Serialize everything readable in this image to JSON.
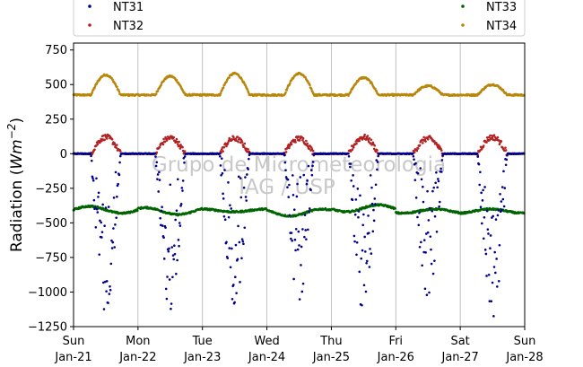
{
  "chart_data": {
    "type": "scatter",
    "title": "",
    "ylabel": "Radiation (Wm⁻²)",
    "ylabel_parts": {
      "prefix": "Radiation (",
      "unit_main": "Wm",
      "unit_exp": "−2",
      "suffix": ")"
    },
    "xlabel": "",
    "ylim": [
      -1250,
      800
    ],
    "xlim_days": [
      0,
      7
    ],
    "y_ticks": [
      -1250,
      -1000,
      -750,
      -500,
      -250,
      0,
      250,
      500,
      750
    ],
    "y_tick_labels": [
      "−1250",
      "−1000",
      "−750",
      "−500",
      "−250",
      "0",
      "250",
      "500",
      "750"
    ],
    "x_ticks": [
      {
        "day": "Sun",
        "date": "Jan-21"
      },
      {
        "day": "Mon",
        "date": "Jan-22"
      },
      {
        "day": "Tue",
        "date": "Jan-23"
      },
      {
        "day": "Wed",
        "date": "Jan-24"
      },
      {
        "day": "Thu",
        "date": "Jan-25"
      },
      {
        "day": "Fri",
        "date": "Jan-26"
      },
      {
        "day": "Sat",
        "date": "Jan-27"
      },
      {
        "day": "Sun",
        "date": "Jan-28"
      }
    ],
    "grid": "vertical",
    "legend_position": "top",
    "watermark": [
      "Grupo de Micrometeorologia",
      "IAG / USP"
    ],
    "series": [
      {
        "name": "NT31",
        "color": "#00008b",
        "baseline": 0,
        "daily_min": [
          -1180,
          -1150,
          -1110,
          -1080,
          -1160,
          -1080,
          -1220
        ],
        "pattern": "night ~0, strong negative daytime scatter"
      },
      {
        "name": "NT32",
        "color": "#b22222",
        "baseline": 0,
        "daily_max": [
          120,
          115,
          110,
          110,
          120,
          110,
          120
        ],
        "pattern": "night ~0, daytime peak"
      },
      {
        "name": "NT33",
        "color": "#006400",
        "baseline": -415,
        "daily_range": [
          [
            -430,
            -380
          ],
          [
            -440,
            -390
          ],
          [
            -420,
            -400
          ],
          [
            -450,
            -400
          ],
          [
            -420,
            -370
          ],
          [
            -430,
            -400
          ],
          [
            -430,
            -400
          ]
        ],
        "pattern": "nearly flat around -410"
      },
      {
        "name": "NT34",
        "color": "#b8860b",
        "baseline": 425,
        "daily_max": [
          570,
          560,
          580,
          580,
          550,
          490,
          500
        ],
        "pattern": "night ~425, daytime peak"
      }
    ]
  }
}
